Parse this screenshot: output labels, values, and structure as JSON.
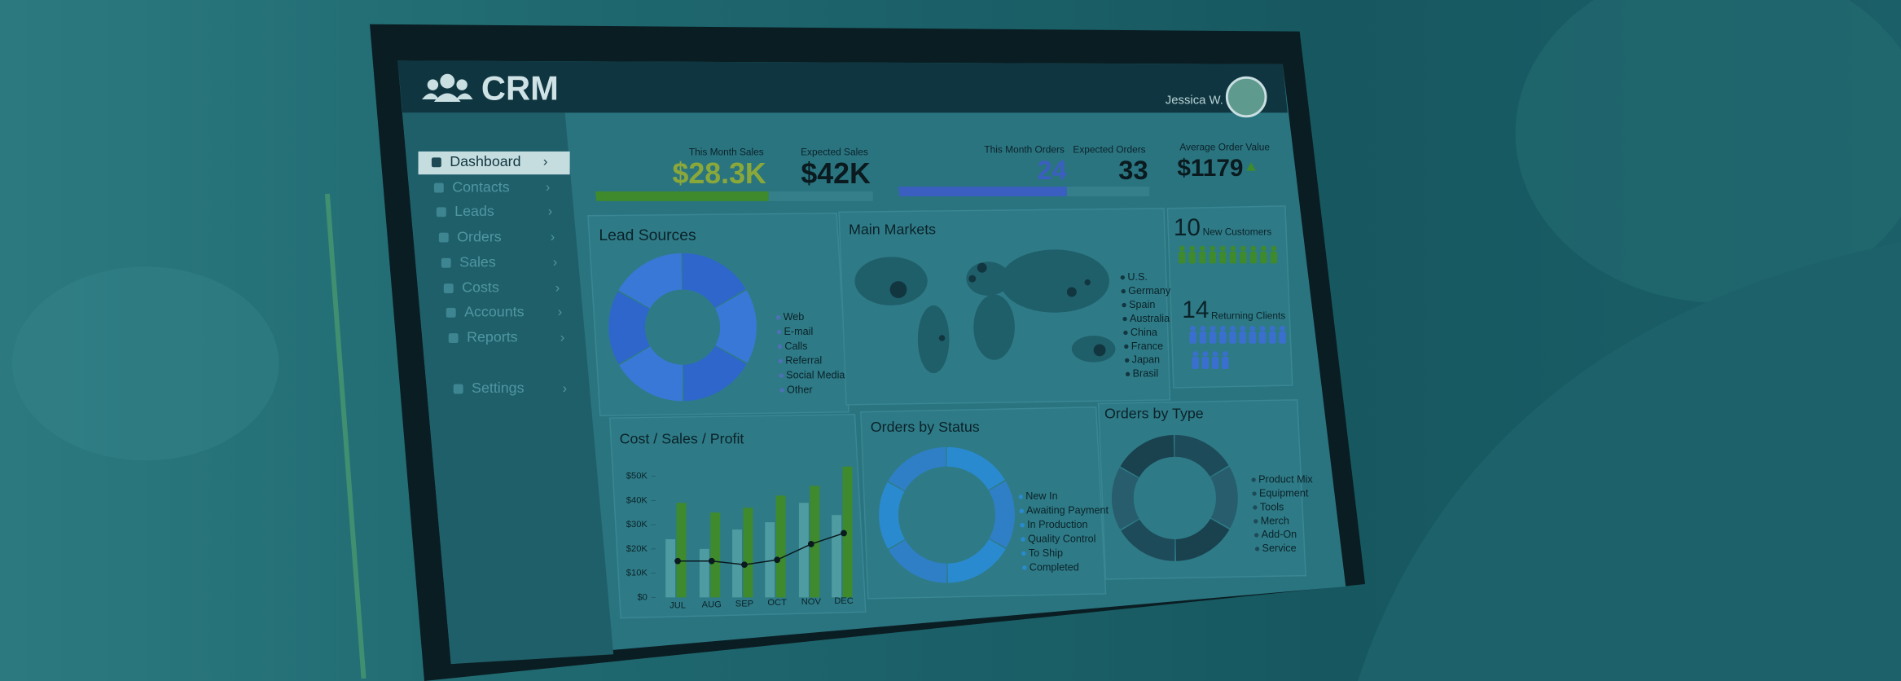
{
  "header": {
    "logo": "CRM",
    "user": "Jessica W."
  },
  "sidebar": {
    "items": [
      "Dashboard",
      "Contacts",
      "Leads",
      "Orders",
      "Sales",
      "Costs",
      "Accounts",
      "Reports",
      "Settings"
    ]
  },
  "kpis": [
    {
      "label": "This Month Sales",
      "value": "$28.3K"
    },
    {
      "label": "Expected Sales",
      "value": "$42K"
    },
    {
      "label": "This Month Orders",
      "value": "24"
    },
    {
      "label": "Expected Orders",
      "value": "33"
    },
    {
      "label": "Average Order Value",
      "value": "$1179"
    }
  ],
  "lead_sources": {
    "title": "Lead Sources",
    "legend": [
      "Web",
      "E-mail",
      "Calls",
      "Referral",
      "Social Media",
      "Other"
    ]
  },
  "main_markets": {
    "title": "Main Markets",
    "legend": [
      "U.S.",
      "Germany",
      "Spain",
      "Australia",
      "China",
      "France",
      "Japan",
      "Brasil"
    ]
  },
  "customers": {
    "new_count": 10,
    "new_label": "New Customers",
    "returning_count": 14,
    "returning_label": "Returning Clients"
  },
  "chart_data": {
    "type": "bar",
    "title": "Cost / Sales / Profit",
    "categories": [
      "JUL",
      "AUG",
      "SEP",
      "OCT",
      "NOV",
      "DEC"
    ],
    "series": [
      {
        "color": "#4f9ba2",
        "values": [
          24000,
          20000,
          28000,
          31000,
          39000,
          34000
        ]
      },
      {
        "color": "#3e8a2c",
        "values": [
          39000,
          35000,
          37000,
          42000,
          46000,
          54000
        ]
      },
      {
        "color": "#0a1a1e",
        "kind": "line",
        "values": [
          15000,
          15000,
          13500,
          15500,
          22000,
          26500
        ]
      }
    ],
    "ylim": [
      0,
      50000
    ],
    "yticks": [
      {
        "value": 0,
        "label": "$0"
      },
      {
        "value": 10000,
        "label": "$10K"
      },
      {
        "value": 20000,
        "label": "$20K"
      },
      {
        "value": 30000,
        "label": "$30K"
      },
      {
        "value": 40000,
        "label": "$40K"
      },
      {
        "value": 50000,
        "label": "$50K"
      }
    ]
  },
  "orders_by_status": {
    "title": "Orders by Status",
    "legend": [
      "New In",
      "Awaiting Payment",
      "In Production",
      "Quality Control",
      "To Ship",
      "Completed"
    ]
  },
  "orders_by_type": {
    "title": "Orders by Type",
    "legend": [
      "Product Mix",
      "Equipment",
      "Tools",
      "Merch",
      "Add-On",
      "Service"
    ]
  }
}
